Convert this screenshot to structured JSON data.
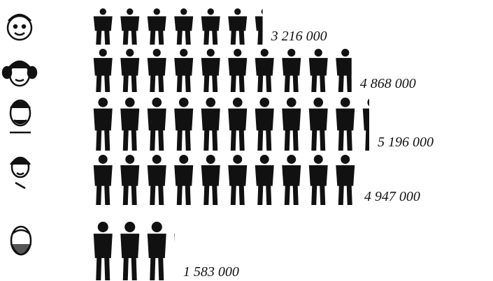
{
  "chart_data": {
    "type": "pictogram",
    "values": [
      3216000,
      4868000,
      5196000,
      4947000,
      1583000
    ],
    "value_labels": [
      "3 216 000",
      "4 868 000",
      "5 196 000",
      "4 947 000",
      "1 583 000"
    ],
    "color": "#111111"
  }
}
